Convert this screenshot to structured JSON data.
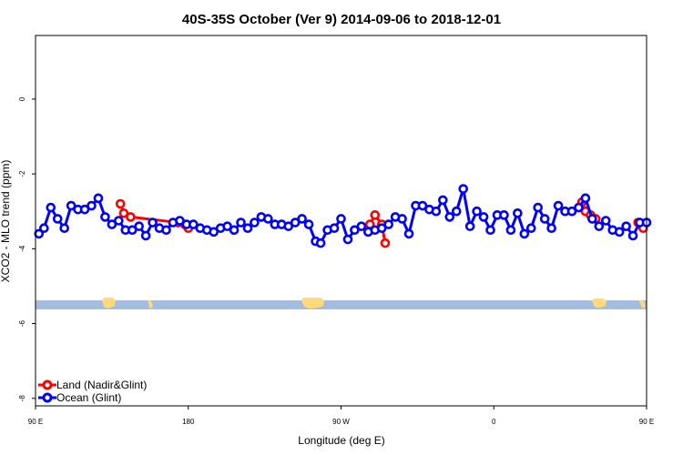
{
  "chart_data": {
    "type": "line",
    "title": "40S-35S October (Ver 9)   2014-09-06 to 2018-12-01",
    "xlabel": "Longitude (deg E)",
    "ylabel": "XCO2 - MLO trend (ppm)",
    "xlim": [
      90,
      450
    ],
    "ylim": [
      -8.2,
      1.7
    ],
    "x_ticks": [
      {
        "value": 90,
        "label": "90 E"
      },
      {
        "value": 180,
        "label": "180"
      },
      {
        "value": 270,
        "label": "90 W"
      },
      {
        "value": 360,
        "label": "0"
      },
      {
        "value": 450,
        "label": "90 E"
      },
      {
        "value": 540,
        "label": "180"
      }
    ],
    "y_ticks": [
      {
        "value": 0,
        "label": "0"
      },
      {
        "value": -2,
        "label": "-2"
      },
      {
        "value": -4,
        "label": "-4"
      },
      {
        "value": -6,
        "label": "-6"
      },
      {
        "value": -8,
        "label": "-8"
      }
    ],
    "grid": false,
    "legend_position": "bottom-left",
    "series": [
      {
        "name": "Land (Nadir&Glint)",
        "color": "#ff0000",
        "segments": [
          [
            [
              140,
              -2.8
            ],
            [
              142,
              -3.05
            ],
            [
              146,
              -3.15
            ],
            [
              174,
              -3.3
            ],
            [
              178,
              -3.35
            ],
            [
              180,
              -3.45
            ]
          ],
          [
            [
              287,
              -3.35
            ],
            [
              290,
              -3.1
            ],
            [
              294,
              -3.35
            ],
            [
              296,
              -3.85
            ]
          ],
          [
            [
              412,
              -2.75
            ],
            [
              414,
              -3.0
            ],
            [
              417,
              -3.1
            ],
            [
              420,
              -3.2
            ]
          ],
          [
            [
              445,
              -3.3
            ],
            [
              448,
              -3.45
            ]
          ]
        ]
      },
      {
        "name": "Ocean (Glint)",
        "color": "#0000ff",
        "points": [
          [
            92,
            -3.6
          ],
          [
            95,
            -3.45
          ],
          [
            99,
            -2.9
          ],
          [
            103,
            -3.2
          ],
          [
            107,
            -3.45
          ],
          [
            111,
            -2.85
          ],
          [
            115,
            -2.95
          ],
          [
            119,
            -2.95
          ],
          [
            123,
            -2.85
          ],
          [
            127,
            -2.65
          ],
          [
            131,
            -3.15
          ],
          [
            135,
            -3.35
          ],
          [
            139,
            -3.25
          ],
          [
            143,
            -3.5
          ],
          [
            147,
            -3.5
          ],
          [
            151,
            -3.4
          ],
          [
            155,
            -3.65
          ],
          [
            159,
            -3.3
          ],
          [
            163,
            -3.45
          ],
          [
            167,
            -3.5
          ],
          [
            171,
            -3.3
          ],
          [
            175,
            -3.25
          ],
          [
            179,
            -3.35
          ],
          [
            183,
            -3.35
          ],
          [
            187,
            -3.45
          ],
          [
            191,
            -3.5
          ],
          [
            195,
            -3.55
          ],
          [
            199,
            -3.45
          ],
          [
            203,
            -3.4
          ],
          [
            207,
            -3.5
          ],
          [
            211,
            -3.3
          ],
          [
            215,
            -3.45
          ],
          [
            219,
            -3.3
          ],
          [
            223,
            -3.15
          ],
          [
            227,
            -3.2
          ],
          [
            231,
            -3.35
          ],
          [
            235,
            -3.35
          ],
          [
            239,
            -3.4
          ],
          [
            243,
            -3.3
          ],
          [
            247,
            -3.2
          ],
          [
            251,
            -3.35
          ],
          [
            255,
            -3.8
          ],
          [
            258,
            -3.85
          ],
          [
            262,
            -3.5
          ],
          [
            266,
            -3.45
          ],
          [
            270,
            -3.2
          ],
          [
            274,
            -3.75
          ],
          [
            278,
            -3.5
          ],
          [
            282,
            -3.4
          ],
          [
            286,
            -3.55
          ],
          [
            290,
            -3.5
          ],
          [
            294,
            -3.45
          ],
          [
            298,
            -3.35
          ],
          [
            302,
            -3.15
          ],
          [
            306,
            -3.2
          ],
          [
            310,
            -3.6
          ],
          [
            314,
            -2.85
          ],
          [
            318,
            -2.85
          ],
          [
            322,
            -2.95
          ],
          [
            326,
            -3.0
          ],
          [
            330,
            -2.7
          ],
          [
            334,
            -3.15
          ],
          [
            338,
            -3.0
          ],
          [
            342,
            -2.4
          ],
          [
            346,
            -3.4
          ],
          [
            350,
            -3.0
          ],
          [
            354,
            -3.15
          ],
          [
            358,
            -3.5
          ],
          [
            362,
            -3.1
          ],
          [
            366,
            -3.1
          ],
          [
            370,
            -3.5
          ],
          [
            374,
            -3.05
          ],
          [
            378,
            -3.6
          ],
          [
            382,
            -3.45
          ],
          [
            386,
            -2.9
          ],
          [
            390,
            -3.2
          ],
          [
            394,
            -3.45
          ],
          [
            398,
            -2.85
          ],
          [
            402,
            -3.0
          ],
          [
            406,
            -3.0
          ],
          [
            410,
            -2.9
          ],
          [
            414,
            -2.65
          ],
          [
            418,
            -3.2
          ],
          [
            422,
            -3.4
          ],
          [
            426,
            -3.25
          ],
          [
            430,
            -3.5
          ],
          [
            434,
            -3.55
          ],
          [
            438,
            -3.4
          ],
          [
            442,
            -3.65
          ],
          [
            446,
            -3.3
          ],
          [
            450,
            -3.3
          ]
        ]
      }
    ],
    "land_strip": {
      "y_top": -5.38,
      "y_bottom": -5.62,
      "ocean_color": "#a3bde0",
      "land_color": "#ffd97a"
    }
  }
}
